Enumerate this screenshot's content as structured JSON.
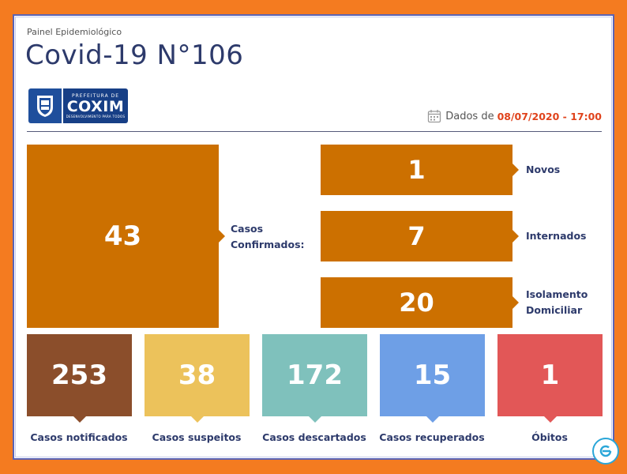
{
  "header": {
    "subtitle": "Painel Epidemiológico",
    "title": "Covid-19 N°106"
  },
  "logo": {
    "prefix": "PREFEITURA DE",
    "city": "COXIM",
    "tagline": "DESENVOLVIMENTO PARA TODOS"
  },
  "date": {
    "label": "Dados de",
    "value": "08/07/2020 - 17:00",
    "icon": "calendar-icon"
  },
  "confirmed": {
    "value": "43",
    "label_line1": "Casos",
    "label_line2": "Confirmados:"
  },
  "breakdown": [
    {
      "value": "1",
      "label_line1": "Novos",
      "label_line2": ""
    },
    {
      "value": "7",
      "label_line1": "Internados",
      "label_line2": ""
    },
    {
      "value": "20",
      "label_line1": "Isolamento",
      "label_line2": "Domiciliar"
    }
  ],
  "stats": [
    {
      "value": "253",
      "label": "Casos notificados",
      "color": "#8b4e2b"
    },
    {
      "value": "38",
      "label": "Casos suspeitos",
      "color": "#ecc25b"
    },
    {
      "value": "172",
      "label": "Casos descartados",
      "color": "#7fc1bc"
    },
    {
      "value": "15",
      "label": "Casos recuperados",
      "color": "#6e9fe6"
    },
    {
      "value": "1",
      "label": "Óbitos",
      "color": "#e25757"
    }
  ],
  "colors": {
    "background": "#f47b20",
    "accent_orange": "#cc7000",
    "text_dark": "#2d3a6b",
    "date_highlight": "#e0431c"
  }
}
